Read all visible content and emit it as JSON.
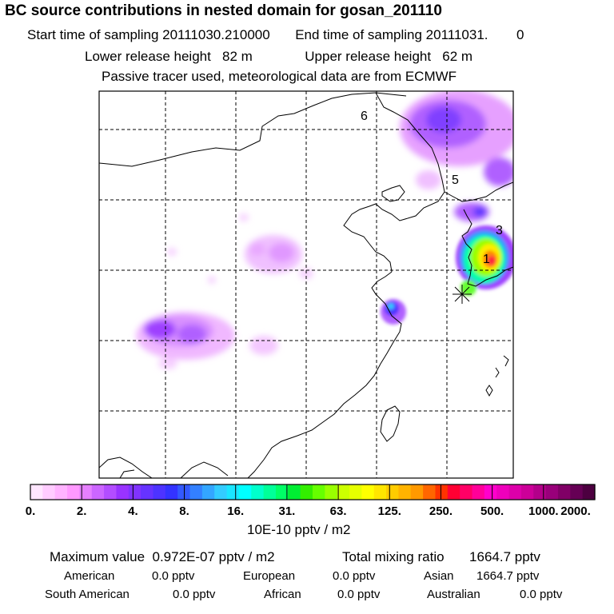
{
  "title": "BC  source contributions in nested domain for gosan_201110",
  "sampling": {
    "start_label": "Start time of sampling",
    "start_value": "20111030.210000",
    "end_label": "End time of sampling",
    "end_value": "20111031.",
    "end_suffix": "0"
  },
  "release": {
    "lower_label": "Lower release height",
    "lower_value": "82 m",
    "upper_label": "Upper release height",
    "upper_value": "62 m"
  },
  "tracer_note": "Passive tracer used, meteorological data are from ECMWF",
  "map": {
    "cluster_labels": [
      "6",
      "5",
      "3",
      "1"
    ],
    "station_marker": "star-icon"
  },
  "colorbar": {
    "tick_labels": [
      "0.",
      "2.",
      "4.",
      "8.",
      "16.",
      "31.",
      "63.",
      "125.",
      "250.",
      "500.",
      "1000.",
      "2000."
    ],
    "units": "10E-10 pptv / m2",
    "colors": [
      "#ffe6ff",
      "#ffccff",
      "#ffb3ff",
      "#ff99ff",
      "#e680ff",
      "#cc66ff",
      "#b34dff",
      "#9933ff",
      "#8033ff",
      "#6633ff",
      "#4d33ff",
      "#3333ff",
      "#3359ff",
      "#3380ff",
      "#33a6ff",
      "#33ccff",
      "#1ae6ff",
      "#00ffff",
      "#00ffcc",
      "#00ff99",
      "#00ff66",
      "#00ee33",
      "#33ee00",
      "#66ff00",
      "#99ff00",
      "#ccff00",
      "#e6ff00",
      "#ffff00",
      "#ffe600",
      "#ffcc00",
      "#ffb300",
      "#ff9900",
      "#ff6600",
      "#ff3300",
      "#ff0033",
      "#ff0066",
      "#ff0099",
      "#ff00cc",
      "#ee00bb",
      "#dd00aa",
      "#cc0099",
      "#b3008a",
      "#99007a",
      "#800066",
      "#660055",
      "#4d0040"
    ]
  },
  "summary": {
    "max_label": "Maximum value",
    "max_value": "0.972E-07 pptv / m2",
    "total_label": "Total mixing ratio",
    "total_value": "1664.7 pptv",
    "regions": [
      {
        "name": "American",
        "value": "0.0 pptv"
      },
      {
        "name": "European",
        "value": "0.0 pptv"
      },
      {
        "name": "Asian",
        "value": "1664.7 pptv"
      },
      {
        "name": "South American",
        "value": "0.0 pptv"
      },
      {
        "name": "African",
        "value": "0.0 pptv"
      },
      {
        "name": "Australian",
        "value": "0.0 pptv"
      }
    ]
  }
}
